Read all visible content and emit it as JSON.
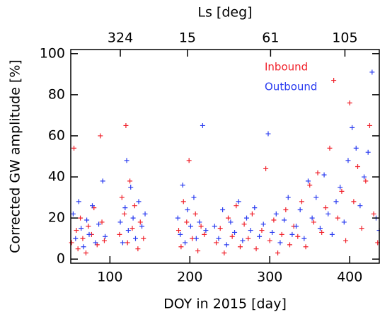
{
  "chart_data": {
    "type": "scatter",
    "x_label": "DOY in 2015 [day]",
    "y_label": "Corrected GW amplitude [%]",
    "x2_label": "Ls [deg]",
    "xlim": [
      51,
      437
    ],
    "ylim": [
      -2,
      102
    ],
    "xticks": [
      100,
      200,
      300,
      400
    ],
    "yticks": [
      0,
      20,
      40,
      60,
      80,
      100
    ],
    "x2ticks": [
      {
        "value": 113,
        "label": "324"
      },
      {
        "value": 197,
        "label": "15"
      },
      {
        "value": 301,
        "label": "61"
      },
      {
        "value": 394,
        "label": "105"
      }
    ],
    "series": [
      {
        "name": "Inbound",
        "color": "#f0202a",
        "x": [
          52,
          55,
          58,
          60,
          63,
          66,
          70,
          73,
          77,
          80,
          84,
          88,
          90,
          93,
          112,
          115,
          118,
          120,
          122,
          125,
          128,
          131,
          135,
          138,
          142,
          186,
          189,
          192,
          196,
          199,
          203,
          207,
          210,
          214,
          218,
          233,
          238,
          243,
          248,
          253,
          258,
          263,
          268,
          273,
          278,
          283,
          290,
          295,
          300,
          305,
          310,
          315,
          320,
          325,
          330,
          335,
          340,
          345,
          350,
          355,
          360,
          365,
          370,
          375,
          380,
          385,
          390,
          395,
          400,
          405,
          410,
          415,
          420,
          425,
          430,
          435
        ],
        "values": [
          8,
          54,
          14,
          5,
          20,
          10,
          3,
          16,
          12,
          25,
          7,
          60,
          18,
          9,
          12,
          30,
          22,
          65,
          8,
          38,
          15,
          26,
          5,
          18,
          10,
          14,
          6,
          28,
          18,
          48,
          10,
          22,
          4,
          16,
          12,
          8,
          15,
          3,
          20,
          11,
          26,
          6,
          17,
          10,
          22,
          5,
          14,
          44,
          9,
          19,
          3,
          12,
          24,
          7,
          16,
          11,
          28,
          6,
          36,
          18,
          42,
          13,
          25,
          54,
          87,
          20,
          33,
          9,
          76,
          28,
          45,
          15,
          38,
          65,
          22,
          8
        ]
      },
      {
        "name": "Outbound",
        "color": "#2a3cf0",
        "x": [
          54,
          57,
          61,
          64,
          67,
          71,
          74,
          78,
          82,
          86,
          91,
          94,
          113,
          116,
          119,
          121,
          123,
          126,
          129,
          132,
          136,
          140,
          144,
          185,
          188,
          191,
          194,
          197,
          201,
          205,
          208,
          212,
          216,
          220,
          231,
          236,
          241,
          246,
          251,
          256,
          261,
          266,
          271,
          276,
          281,
          287,
          292,
          298,
          303,
          308,
          313,
          318,
          323,
          328,
          333,
          338,
          343,
          348,
          353,
          358,
          363,
          368,
          373,
          378,
          383,
          388,
          393,
          398,
          403,
          408,
          413,
          418,
          423,
          428,
          433,
          437
        ],
        "values": [
          22,
          10,
          28,
          15,
          6,
          19,
          12,
          26,
          8,
          17,
          38,
          11,
          18,
          8,
          25,
          48,
          14,
          35,
          20,
          10,
          28,
          16,
          22,
          20,
          12,
          36,
          8,
          24,
          16,
          30,
          10,
          18,
          65,
          14,
          16,
          10,
          24,
          7,
          18,
          13,
          28,
          9,
          20,
          14,
          25,
          11,
          17,
          61,
          13,
          22,
          8,
          19,
          30,
          12,
          16,
          24,
          10,
          38,
          20,
          30,
          15,
          41,
          22,
          12,
          28,
          35,
          18,
          48,
          64,
          54,
          26,
          40,
          52,
          91,
          20,
          14
        ]
      }
    ]
  }
}
